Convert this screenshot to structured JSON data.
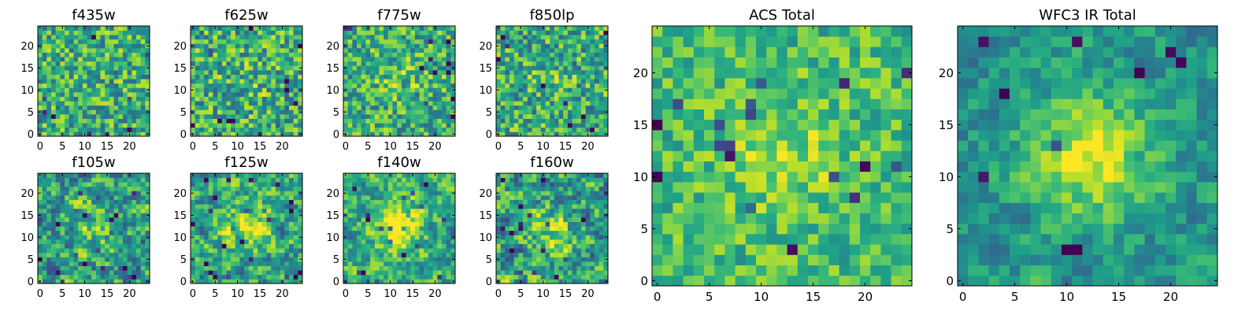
{
  "chart_data": [
    {
      "type": "heatmap",
      "title": "f435w",
      "xticks": [
        "0",
        "5",
        "10",
        "15",
        "20"
      ],
      "yticks": [
        "0",
        "5",
        "10",
        "15",
        "20"
      ],
      "xlim": [
        -0.5,
        24.5
      ],
      "ylim": [
        -0.5,
        24.5
      ],
      "grid_size": 25,
      "colormap": "viridis"
    },
    {
      "type": "heatmap",
      "title": "f625w",
      "xticks": [
        "0",
        "5",
        "10",
        "15",
        "20"
      ],
      "yticks": [
        "0",
        "5",
        "10",
        "15",
        "20"
      ],
      "xlim": [
        -0.5,
        24.5
      ],
      "ylim": [
        -0.5,
        24.5
      ],
      "grid_size": 25,
      "colormap": "viridis"
    },
    {
      "type": "heatmap",
      "title": "f775w",
      "xticks": [
        "0",
        "5",
        "10",
        "15",
        "20"
      ],
      "yticks": [
        "0",
        "5",
        "10",
        "15",
        "20"
      ],
      "xlim": [
        -0.5,
        24.5
      ],
      "ylim": [
        -0.5,
        24.5
      ],
      "grid_size": 25,
      "colormap": "viridis"
    },
    {
      "type": "heatmap",
      "title": "f850lp",
      "xticks": [
        "0",
        "5",
        "10",
        "15",
        "20"
      ],
      "yticks": [
        "0",
        "5",
        "10",
        "15",
        "20"
      ],
      "xlim": [
        -0.5,
        24.5
      ],
      "ylim": [
        -0.5,
        24.5
      ],
      "grid_size": 25,
      "colormap": "viridis"
    },
    {
      "type": "heatmap",
      "title": "f105w",
      "xticks": [
        "0",
        "5",
        "10",
        "15",
        "20"
      ],
      "yticks": [
        "0",
        "5",
        "10",
        "15",
        "20"
      ],
      "xlim": [
        -0.5,
        24.5
      ],
      "ylim": [
        -0.5,
        24.5
      ],
      "grid_size": 25,
      "colormap": "viridis"
    },
    {
      "type": "heatmap",
      "title": "f125w",
      "xticks": [
        "0",
        "5",
        "10",
        "15",
        "20"
      ],
      "yticks": [
        "0",
        "5",
        "10",
        "15",
        "20"
      ],
      "xlim": [
        -0.5,
        24.5
      ],
      "ylim": [
        -0.5,
        24.5
      ],
      "grid_size": 25,
      "colormap": "viridis"
    },
    {
      "type": "heatmap",
      "title": "f140w",
      "xticks": [
        "0",
        "5",
        "10",
        "15",
        "20"
      ],
      "yticks": [
        "0",
        "5",
        "10",
        "15",
        "20"
      ],
      "xlim": [
        -0.5,
        24.5
      ],
      "ylim": [
        -0.5,
        24.5
      ],
      "grid_size": 25,
      "colormap": "viridis"
    },
    {
      "type": "heatmap",
      "title": "f160w",
      "xticks": [
        "0",
        "5",
        "10",
        "15",
        "20"
      ],
      "yticks": [
        "0",
        "5",
        "10",
        "15",
        "20"
      ],
      "xlim": [
        -0.5,
        24.5
      ],
      "ylim": [
        -0.5,
        24.5
      ],
      "grid_size": 25,
      "colormap": "viridis"
    },
    {
      "type": "heatmap",
      "title": "ACS Total",
      "xticks": [
        "0",
        "5",
        "10",
        "15",
        "20"
      ],
      "yticks": [
        "0",
        "5",
        "10",
        "15",
        "20"
      ],
      "xlim": [
        -0.5,
        24.5
      ],
      "ylim": [
        -0.5,
        24.5
      ],
      "grid_size": 25,
      "colormap": "viridis"
    },
    {
      "type": "heatmap",
      "title": "WFC3 IR Total",
      "xticks": [
        "0",
        "5",
        "10",
        "15",
        "20"
      ],
      "yticks": [
        "0",
        "5",
        "10",
        "15",
        "20"
      ],
      "xlim": [
        -0.5,
        24.5
      ],
      "ylim": [
        -0.5,
        24.5
      ],
      "grid_size": 25,
      "colormap": "viridis"
    }
  ]
}
